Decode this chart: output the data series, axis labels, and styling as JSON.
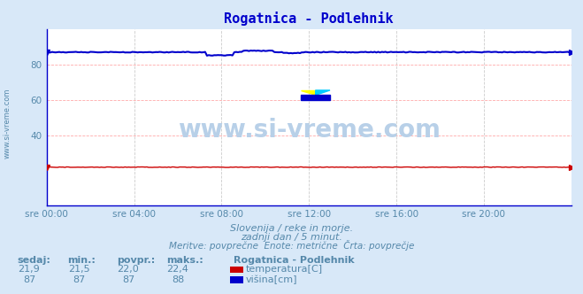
{
  "title": "Rogatnica - Podlehnik",
  "bg_color": "#d8e8f8",
  "plot_bg_color": "#ffffff",
  "grid_color_h": "#ffaaaa",
  "grid_color_v": "#cccccc",
  "x_ticks_labels": [
    "sre 00:00",
    "sre 04:00",
    "sre 08:00",
    "sre 12:00",
    "sre 16:00",
    "sre 20:00"
  ],
  "x_ticks_pos": [
    0,
    48,
    96,
    144,
    192,
    240
  ],
  "ylim": [
    0,
    100
  ],
  "yticks": [
    40,
    60,
    80
  ],
  "n_points": 289,
  "temp_value": 21.9,
  "temp_min": 21.5,
  "temp_avg": 22.0,
  "temp_max": 22.4,
  "height_value": 87,
  "height_min": 87,
  "height_avg": 87,
  "height_max": 88,
  "temp_color": "#cc0000",
  "height_color": "#0000cc",
  "watermark": "www.si-vreme.com",
  "watermark_color": "#b8d0e8",
  "subtitle1": "Slovenija / reke in morje.",
  "subtitle2": "zadnji dan / 5 minut.",
  "subtitle3": "Meritve: povprečne  Enote: metrične  Črta: povprečje",
  "label_sedaj": "sedaj:",
  "label_min": "min.:",
  "label_povpr": "povpr.:",
  "label_maks": "maks.:",
  "legend_title": "Rogatnica - Podlehnik",
  "legend_temp": "temperatura[C]",
  "legend_height": "višina[cm]",
  "text_color": "#5588aa",
  "title_color": "#0000cc",
  "spine_color": "#0000cc"
}
